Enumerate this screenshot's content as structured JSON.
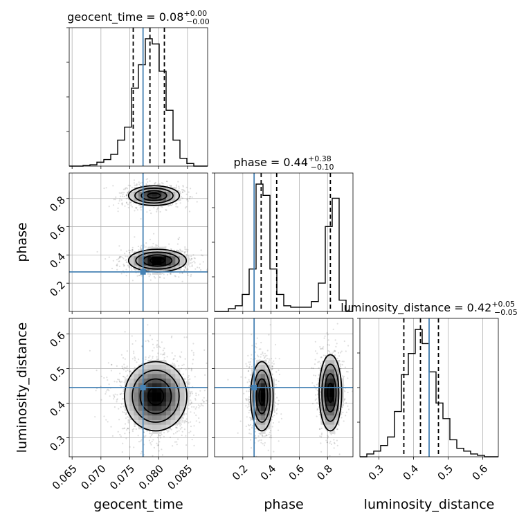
{
  "chart_data": {
    "type": "corner",
    "parameters": [
      "geocent_time",
      "phase",
      "luminosity_distance"
    ],
    "axis_labels": {
      "x": [
        "geocent_time",
        "phase",
        "luminosity_distance"
      ],
      "y": [
        "phase",
        "luminosity_distance"
      ]
    },
    "titles": [
      {
        "parameter": "geocent_time",
        "text": "geocent_time = 0.08",
        "plus": "+0.00",
        "minus": "−0.00"
      },
      {
        "parameter": "phase",
        "text": "phase = 0.44",
        "plus": "+0.38",
        "minus": "−0.10"
      },
      {
        "parameter": "luminosity_distance",
        "text": "luminosity_distance = 0.42",
        "plus": "+0.05",
        "minus": "−0.05"
      }
    ],
    "ranges": {
      "geocent_time": [
        0.0645,
        0.0885
      ],
      "phase": [
        0.0,
        0.98
      ],
      "luminosity_distance": [
        0.245,
        0.645
      ]
    },
    "ticks": {
      "geocent_time": [
        "0.065",
        "0.070",
        "0.075",
        "0.080",
        "0.085"
      ],
      "phase": [
        "0.2",
        "0.4",
        "0.6",
        "0.8"
      ],
      "luminosity_distance": [
        "0.3",
        "0.4",
        "0.5",
        "0.6"
      ]
    },
    "truths": {
      "geocent_time": 0.0773,
      "phase": 0.28,
      "luminosity_distance": 0.445
    },
    "quantiles": {
      "geocent_time": [
        0.0756,
        0.0785,
        0.081
      ],
      "phase": [
        0.33,
        0.44,
        0.82
      ],
      "luminosity_distance": [
        0.372,
        0.42,
        0.472
      ]
    },
    "histograms": {
      "geocent_time": {
        "edges": [
          0.0645,
          0.0657,
          0.0669,
          0.0681,
          0.0693,
          0.0705,
          0.0717,
          0.0729,
          0.0741,
          0.0753,
          0.0765,
          0.0777,
          0.0789,
          0.0801,
          0.0813,
          0.0825,
          0.0837,
          0.0849,
          0.0861,
          0.0873,
          0.0885
        ],
        "counts": [
          0.0,
          0.0,
          0.005,
          0.01,
          0.03,
          0.05,
          0.09,
          0.2,
          0.3,
          0.6,
          0.78,
          0.98,
          0.94,
          0.73,
          0.43,
          0.2,
          0.06,
          0.02,
          0.0,
          0.0
        ]
      },
      "phase": {
        "edges": [
          0.0,
          0.049,
          0.098,
          0.147,
          0.196,
          0.245,
          0.294,
          0.343,
          0.392,
          0.441,
          0.49,
          0.539,
          0.588,
          0.637,
          0.686,
          0.735,
          0.784,
          0.833,
          0.882,
          0.931,
          0.98
        ],
        "counts": [
          0.0,
          0.0,
          0.02,
          0.04,
          0.12,
          0.3,
          0.9,
          0.82,
          0.3,
          0.12,
          0.04,
          0.03,
          0.03,
          0.03,
          0.07,
          0.2,
          0.6,
          0.8,
          0.08,
          0.0
        ]
      },
      "luminosity_distance": {
        "edges": [
          0.245,
          0.265,
          0.285,
          0.305,
          0.325,
          0.345,
          0.365,
          0.385,
          0.405,
          0.425,
          0.445,
          0.465,
          0.485,
          0.505,
          0.525,
          0.545,
          0.565,
          0.585,
          0.605,
          0.625,
          0.645
        ],
        "counts": [
          0.0,
          0.02,
          0.04,
          0.08,
          0.14,
          0.32,
          0.58,
          0.73,
          0.9,
          0.8,
          0.6,
          0.38,
          0.27,
          0.12,
          0.06,
          0.04,
          0.02,
          0.01,
          0.0,
          0.0
        ]
      }
    },
    "joint_modes": [
      {
        "x": "geocent_time",
        "y": "phase",
        "modes": [
          {
            "cx": 0.0792,
            "cy": 0.82,
            "sx": 0.0022,
            "sy": 0.035,
            "w": 0.45
          },
          {
            "cx": 0.0798,
            "cy": 0.36,
            "sx": 0.0025,
            "sy": 0.04,
            "w": 0.55
          }
        ]
      },
      {
        "x": "geocent_time",
        "y": "luminosity_distance",
        "modes": [
          {
            "cx": 0.0795,
            "cy": 0.42,
            "sx": 0.0027,
            "sy": 0.05,
            "w": 1.0
          }
        ]
      },
      {
        "x": "phase",
        "y": "luminosity_distance",
        "modes": [
          {
            "cx": 0.335,
            "cy": 0.42,
            "sx": 0.04,
            "sy": 0.05,
            "w": 0.5
          },
          {
            "cx": 0.82,
            "cy": 0.43,
            "sx": 0.04,
            "sy": 0.055,
            "w": 0.5
          }
        ]
      }
    ]
  }
}
